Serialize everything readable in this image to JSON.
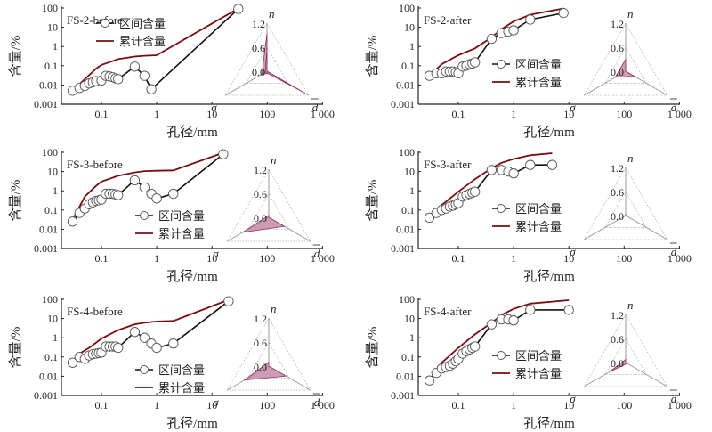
{
  "labels": {
    "xlabel": "孔径/mm",
    "ylabel": "含量/%",
    "legend_interval": "区间含量",
    "legend_cumulative": "累计含量",
    "radar_axis_n": "n",
    "radar_axis_sigma": "σ",
    "radar_axis_d": "d",
    "radar_ticks": [
      "1.2",
      "0.6",
      "0.0"
    ]
  },
  "colors": {
    "interval_line": "#111111",
    "cumulative_line": "#7a0d0d",
    "marker_edge": "#555555",
    "marker_fill": "#ffffff",
    "radar_fill": "#c68aa6",
    "radar_edge": "#8a3a62",
    "radar_grid": "#aaaaaa"
  },
  "chart_data": [
    {
      "type": "line",
      "title": "FS-2-before",
      "xlabel": "孔径/mm",
      "ylabel": "含量/%",
      "xscale": "log",
      "yscale": "log",
      "xlim": [
        0.02,
        1000
      ],
      "ylim": [
        0.001,
        100
      ],
      "xticks": [
        "0.1",
        "1",
        "10",
        "100",
        "1 000"
      ],
      "yticks": [
        "0.001",
        "0.01",
        "0.1",
        "1",
        "10",
        "100"
      ],
      "legend_position": "top-left",
      "series": [
        {
          "name": "区间含量",
          "x": [
            0.03,
            0.04,
            0.05,
            0.06,
            0.07,
            0.08,
            0.1,
            0.12,
            0.14,
            0.16,
            0.18,
            0.2,
            0.4,
            0.6,
            0.8,
            30
          ],
          "y": [
            0.005,
            0.007,
            0.009,
            0.012,
            0.014,
            0.016,
            0.017,
            0.03,
            0.028,
            0.025,
            0.022,
            0.02,
            0.09,
            0.03,
            0.006,
            90
          ]
        },
        {
          "name": "累计含量",
          "x": [
            0.03,
            0.05,
            0.08,
            0.1,
            0.2,
            0.4,
            0.6,
            1,
            30
          ],
          "y": [
            0.005,
            0.02,
            0.07,
            0.11,
            0.22,
            0.3,
            0.33,
            0.35,
            95
          ]
        }
      ],
      "radar": {
        "axes": [
          "n",
          "σ",
          "d"
        ],
        "range": [
          0,
          1.2
        ],
        "polygon": [
          [
            0.95,
            0.15,
            0.1
          ],
          [
            0.0,
            0.0,
            1.1
          ],
          [
            0.55,
            0.05,
            0.95
          ]
        ]
      }
    },
    {
      "type": "line",
      "title": "FS-2-after",
      "xlabel": "孔径/mm",
      "ylabel": "含量/%",
      "xscale": "log",
      "yscale": "log",
      "xlim": [
        0.02,
        1000
      ],
      "ylim": [
        0.001,
        100
      ],
      "xticks": [
        "0.1",
        "1",
        "10",
        "100",
        "1 000"
      ],
      "yticks": [
        "0.001",
        "0.01",
        "0.1",
        "1",
        "10",
        "100"
      ],
      "legend_position": "center",
      "series": [
        {
          "name": "区间含量",
          "x": [
            0.03,
            0.04,
            0.05,
            0.06,
            0.07,
            0.08,
            0.09,
            0.1,
            0.12,
            0.14,
            0.16,
            0.18,
            0.2,
            0.4,
            0.6,
            0.8,
            1,
            2,
            8
          ],
          "y": [
            0.03,
            0.04,
            0.04,
            0.05,
            0.05,
            0.05,
            0.045,
            0.04,
            0.09,
            0.1,
            0.12,
            0.13,
            0.15,
            2.5,
            5,
            6,
            7,
            25,
            55
          ]
        },
        {
          "name": "累计含量",
          "x": [
            0.03,
            0.05,
            0.08,
            0.1,
            0.2,
            0.4,
            0.6,
            1,
            2,
            8
          ],
          "y": [
            0.03,
            0.12,
            0.25,
            0.35,
            0.8,
            3,
            8,
            20,
            45,
            95
          ]
        }
      ],
      "radar": {
        "axes": [
          "n",
          "σ",
          "d"
        ],
        "range": [
          0,
          1.2
        ],
        "polygon": [
          [
            0.3,
            0.3,
            0.25
          ]
        ]
      }
    },
    {
      "type": "line",
      "title": "FS-3-before",
      "xlabel": "孔径/mm",
      "ylabel": "含量/%",
      "xscale": "log",
      "yscale": "log",
      "xlim": [
        0.02,
        1000
      ],
      "ylim": [
        0.001,
        100
      ],
      "xticks": [
        "0.1",
        "1",
        "10",
        "100",
        "1 000"
      ],
      "yticks": [
        "0.001",
        "0.01",
        "0.1",
        "1",
        "10",
        "100"
      ],
      "legend_position": "center",
      "series": [
        {
          "name": "区间含量",
          "x": [
            0.03,
            0.04,
            0.05,
            0.06,
            0.07,
            0.08,
            0.09,
            0.1,
            0.12,
            0.14,
            0.16,
            0.18,
            0.2,
            0.4,
            0.6,
            0.8,
            1,
            2,
            16
          ],
          "y": [
            0.025,
            0.07,
            0.12,
            0.2,
            0.25,
            0.3,
            0.32,
            0.35,
            0.7,
            0.7,
            0.7,
            0.65,
            0.6,
            3.5,
            1.5,
            0.7,
            0.4,
            0.7,
            80
          ]
        },
        {
          "name": "累计含量",
          "x": [
            0.03,
            0.05,
            0.08,
            0.1,
            0.2,
            0.4,
            0.6,
            1,
            2,
            16
          ],
          "y": [
            0.03,
            0.5,
            1.8,
            3,
            6,
            9,
            10.5,
            11,
            11.5,
            95
          ]
        }
      ],
      "radar": {
        "axes": [
          "n",
          "σ",
          "d"
        ],
        "range": [
          0,
          1.2
        ],
        "polygon": [
          [
            0.05,
            0.75,
            0.45
          ]
        ]
      }
    },
    {
      "type": "line",
      "title": "FS-3-after",
      "xlabel": "孔径/mm",
      "ylabel": "含量/%",
      "xscale": "log",
      "yscale": "log",
      "xlim": [
        0.02,
        1000
      ],
      "ylim": [
        0.001,
        100
      ],
      "xticks": [
        "0.1",
        "1",
        "10",
        "100",
        "1 000"
      ],
      "yticks": [
        "0.001",
        "0.01",
        "0.1",
        "1",
        "10",
        "100"
      ],
      "legend_position": "center",
      "series": [
        {
          "name": "区间含量",
          "x": [
            0.03,
            0.04,
            0.05,
            0.06,
            0.07,
            0.08,
            0.09,
            0.1,
            0.12,
            0.14,
            0.16,
            0.18,
            0.2,
            0.4,
            0.6,
            0.8,
            1,
            2,
            5
          ],
          "y": [
            0.04,
            0.07,
            0.1,
            0.12,
            0.15,
            0.17,
            0.2,
            0.23,
            0.5,
            0.6,
            0.7,
            0.8,
            0.9,
            12,
            12,
            10,
            8,
            22,
            22
          ]
        },
        {
          "name": "累计含量",
          "x": [
            0.03,
            0.05,
            0.1,
            0.2,
            0.4,
            0.6,
            1,
            2,
            5
          ],
          "y": [
            0.04,
            0.18,
            0.9,
            4,
            15,
            28,
            45,
            70,
            90
          ]
        }
      ],
      "radar": {
        "axes": [
          "n",
          "σ",
          "d"
        ],
        "range": [
          0,
          1.2
        ],
        "polygon": [
          [
            0.02,
            0.03,
            0.03
          ]
        ]
      }
    },
    {
      "type": "line",
      "title": "FS-4-before",
      "xlabel": "孔径/mm",
      "ylabel": "含量/%",
      "xscale": "log",
      "yscale": "log",
      "xlim": [
        0.02,
        1000
      ],
      "ylim": [
        0.001,
        100
      ],
      "xticks": [
        "0.1",
        "1",
        "10",
        "100",
        "1 000"
      ],
      "yticks": [
        "0.001",
        "0.01",
        "0.1",
        "1",
        "10",
        "100"
      ],
      "legend_position": "center",
      "series": [
        {
          "name": "区间含量",
          "x": [
            0.03,
            0.04,
            0.05,
            0.06,
            0.07,
            0.08,
            0.09,
            0.1,
            0.12,
            0.14,
            0.16,
            0.18,
            0.2,
            0.4,
            0.6,
            0.8,
            1,
            2,
            20
          ],
          "y": [
            0.05,
            0.1,
            0.08,
            0.12,
            0.14,
            0.15,
            0.16,
            0.17,
            0.35,
            0.35,
            0.35,
            0.35,
            0.3,
            2,
            1,
            0.5,
            0.3,
            0.5,
            80
          ]
        },
        {
          "name": "累计含量",
          "x": [
            0.03,
            0.04,
            0.06,
            0.1,
            0.2,
            0.4,
            0.6,
            1,
            2,
            20
          ],
          "y": [
            0.05,
            0.15,
            0.3,
            0.9,
            2.5,
            5,
            6,
            7,
            7.5,
            95
          ]
        }
      ],
      "radar": {
        "axes": [
          "n",
          "σ",
          "d"
        ],
        "range": [
          0,
          1.2
        ],
        "polygon": [
          [
            0.1,
            0.7,
            0.5
          ]
        ]
      }
    },
    {
      "type": "line",
      "title": "FS-4-after",
      "xlabel": "孔径/mm",
      "ylabel": "含量/%",
      "xscale": "log",
      "yscale": "log",
      "xlim": [
        0.02,
        1000
      ],
      "ylim": [
        0.001,
        100
      ],
      "xticks": [
        "0.1",
        "1",
        "10",
        "100",
        "1 000"
      ],
      "yticks": [
        "0.001",
        "0.01",
        "0.1",
        "1",
        "10",
        "100"
      ],
      "legend_position": "center",
      "series": [
        {
          "name": "区间含量",
          "x": [
            0.03,
            0.04,
            0.05,
            0.06,
            0.07,
            0.08,
            0.09,
            0.1,
            0.12,
            0.14,
            0.16,
            0.18,
            0.2,
            0.4,
            0.6,
            0.8,
            1,
            2,
            10
          ],
          "y": [
            0.006,
            0.015,
            0.025,
            0.03,
            0.035,
            0.045,
            0.06,
            0.08,
            0.15,
            0.2,
            0.25,
            0.3,
            0.35,
            5,
            9,
            9,
            8,
            28,
            28
          ]
        },
        {
          "name": "累计含量",
          "x": [
            0.03,
            0.05,
            0.1,
            0.2,
            0.4,
            0.6,
            1,
            2,
            10
          ],
          "y": [
            0.006,
            0.05,
            0.3,
            1.5,
            6,
            15,
            32,
            60,
            90
          ]
        }
      ],
      "radar": {
        "axes": [
          "n",
          "σ",
          "d"
        ],
        "range": [
          0,
          1.2
        ],
        "polygon": [
          [
            0.08,
            0.45,
            0.05
          ]
        ]
      }
    }
  ]
}
